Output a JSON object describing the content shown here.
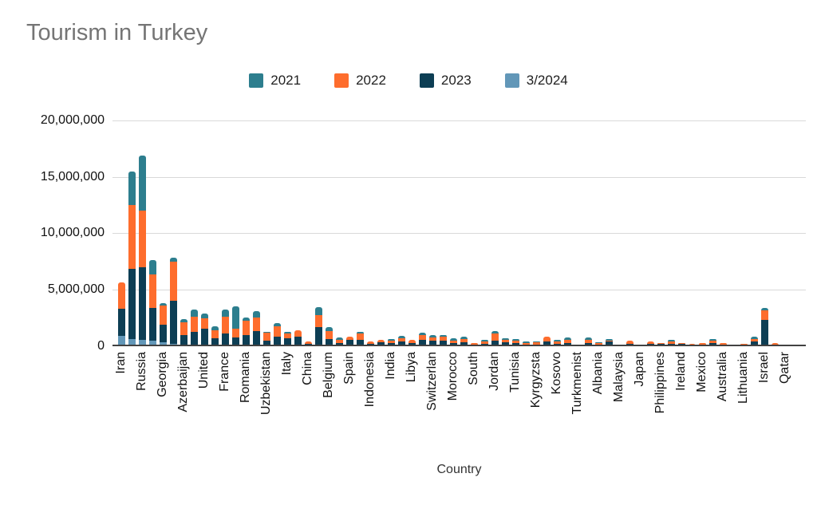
{
  "title": "Tourism in Turkey",
  "chart_data": {
    "type": "bar",
    "stacked": true,
    "title": "Tourism in Turkey",
    "xlabel": "Country",
    "ylabel": "",
    "ylim": [
      0,
      20000000
    ],
    "grid": true,
    "legend_position": "top",
    "yticks": [
      {
        "label": "0",
        "value": 0
      },
      {
        "label": "5,000,000",
        "value": 5000000
      },
      {
        "label": "10,000,000",
        "value": 10000000
      },
      {
        "label": "15,000,000",
        "value": 15000000
      },
      {
        "label": "20,000,000",
        "value": 20000000
      }
    ],
    "series": [
      {
        "name": "2021",
        "color": "#2d7e8e"
      },
      {
        "name": "2022",
        "color": "#fe6d2d"
      },
      {
        "name": "2023",
        "color": "#0d3e54"
      },
      {
        "name": "3/2024",
        "color": "#6297b8"
      }
    ],
    "stack_order_bottom_to_top": [
      "3/2024",
      "2023",
      "2022",
      "2021"
    ],
    "axis_note": "only every other bar carries a visible country label; empty label = unlabeled bar",
    "bars": [
      {
        "label": "Iran",
        "values": [
          890000,
          2430000,
          2350000,
          0
        ]
      },
      {
        "label": "",
        "values": [
          640000,
          6220000,
          5660000,
          2970000
        ]
      },
      {
        "label": "Russia",
        "values": [
          550000,
          6450000,
          5000000,
          4900000
        ]
      },
      {
        "label": "",
        "values": [
          470000,
          2910000,
          2950000,
          1300000
        ]
      },
      {
        "label": "Georgia",
        "values": [
          350000,
          1540000,
          1700000,
          240000
        ]
      },
      {
        "label": "",
        "values": [
          240000,
          3820000,
          3450000,
          330000
        ]
      },
      {
        "label": "Azerbaijan",
        "values": [
          0,
          990000,
          1130000,
          280000
        ]
      },
      {
        "label": "",
        "values": [
          0,
          1300000,
          1350000,
          610000
        ]
      },
      {
        "label": "United",
        "values": [
          0,
          1540000,
          940000,
          400000
        ]
      },
      {
        "label": "",
        "values": [
          0,
          710000,
          710000,
          350000
        ]
      },
      {
        "label": "France",
        "values": [
          0,
          1130000,
          1470000,
          660000
        ]
      },
      {
        "label": "",
        "values": [
          0,
          800000,
          800000,
          2000000
        ]
      },
      {
        "label": "Romania",
        "values": [
          0,
          970000,
          1250000,
          310000
        ]
      },
      {
        "label": "",
        "values": [
          0,
          1350000,
          1230000,
          590000
        ]
      },
      {
        "label": "Uzbekistan",
        "values": [
          0,
          520000,
          710000,
          100000
        ]
      },
      {
        "label": "",
        "values": [
          0,
          870000,
          900000,
          280000
        ]
      },
      {
        "label": "Italy",
        "values": [
          0,
          710000,
          400000,
          170000
        ]
      },
      {
        "label": "",
        "values": [
          0,
          870000,
          590000,
          0
        ]
      },
      {
        "label": "China",
        "values": [
          0,
          210000,
          240000,
          0
        ]
      },
      {
        "label": "",
        "values": [
          0,
          1700000,
          1060000,
          710000
        ]
      },
      {
        "label": "Belgium",
        "values": [
          0,
          640000,
          710000,
          350000
        ]
      },
      {
        "label": "",
        "values": [
          0,
          310000,
          280000,
          210000
        ]
      },
      {
        "label": "Spain",
        "values": [
          0,
          590000,
          280000,
          0
        ]
      },
      {
        "label": "",
        "values": [
          0,
          590000,
          540000,
          170000
        ]
      },
      {
        "label": "Indonesia",
        "values": [
          0,
          240000,
          240000,
          0
        ]
      },
      {
        "label": "",
        "values": [
          0,
          350000,
          210000,
          0
        ]
      },
      {
        "label": "India",
        "values": [
          0,
          280000,
          190000,
          170000
        ]
      },
      {
        "label": "",
        "values": [
          0,
          400000,
          310000,
          240000
        ]
      },
      {
        "label": "Libya",
        "values": [
          0,
          280000,
          280000,
          0
        ]
      },
      {
        "label": "",
        "values": [
          0,
          570000,
          430000,
          240000
        ]
      },
      {
        "label": "Switzerlan",
        "values": [
          0,
          470000,
          280000,
          190000
        ]
      },
      {
        "label": "",
        "values": [
          0,
          470000,
          350000,
          120000
        ]
      },
      {
        "label": "Morocco",
        "values": [
          0,
          280000,
          240000,
          190000
        ]
      },
      {
        "label": "",
        "values": [
          0,
          330000,
          280000,
          190000
        ]
      },
      {
        "label": "South",
        "values": [
          0,
          170000,
          160000,
          0
        ]
      },
      {
        "label": "",
        "values": [
          0,
          210000,
          210000,
          140000
        ]
      },
      {
        "label": "Jordan",
        "values": [
          0,
          470000,
          660000,
          240000
        ]
      },
      {
        "label": "",
        "values": [
          0,
          330000,
          240000,
          140000
        ]
      },
      {
        "label": "Tunisia",
        "values": [
          0,
          280000,
          240000,
          140000
        ]
      },
      {
        "label": "",
        "values": [
          0,
          140000,
          140000,
          140000
        ]
      },
      {
        "label": "Kyrgyzsta",
        "values": [
          0,
          170000,
          190000,
          70000
        ]
      },
      {
        "label": "",
        "values": [
          0,
          430000,
          400000,
          0
        ]
      },
      {
        "label": "Kosovo",
        "values": [
          0,
          240000,
          190000,
          170000
        ]
      },
      {
        "label": "",
        "values": [
          0,
          280000,
          280000,
          190000
        ]
      },
      {
        "label": "Turkmenist",
        "values": [
          0,
          90000,
          100000,
          0
        ]
      },
      {
        "label": "",
        "values": [
          0,
          280000,
          280000,
          190000
        ]
      },
      {
        "label": "Albania",
        "values": [
          0,
          170000,
          120000,
          90000
        ]
      },
      {
        "label": "",
        "values": [
          0,
          450000,
          70000,
          140000
        ]
      },
      {
        "label": "Malaysia",
        "values": [
          0,
          0,
          140000,
          0
        ]
      },
      {
        "label": "",
        "values": [
          0,
          240000,
          280000,
          0
        ]
      },
      {
        "label": "Japan",
        "values": [
          0,
          100000,
          0,
          90000
        ]
      },
      {
        "label": "",
        "values": [
          0,
          190000,
          240000,
          0
        ]
      },
      {
        "label": "Philippines",
        "values": [
          0,
          240000,
          20000,
          0
        ]
      },
      {
        "label": "",
        "values": [
          0,
          240000,
          190000,
          140000
        ]
      },
      {
        "label": "Ireland",
        "values": [
          0,
          210000,
          50000,
          0
        ]
      },
      {
        "label": "",
        "values": [
          0,
          0,
          190000,
          0
        ]
      },
      {
        "label": "Mexico",
        "values": [
          0,
          120000,
          140000,
          0
        ]
      },
      {
        "label": "",
        "values": [
          0,
          310000,
          240000,
          170000
        ]
      },
      {
        "label": "Australia",
        "values": [
          0,
          120000,
          120000,
          0
        ]
      },
      {
        "label": "",
        "values": [
          0,
          0,
          170000,
          0
        ]
      },
      {
        "label": "Lithuania",
        "values": [
          0,
          120000,
          20000,
          0
        ]
      },
      {
        "label": "",
        "values": [
          0,
          400000,
          240000,
          190000
        ]
      },
      {
        "label": "Israel",
        "values": [
          0,
          2360000,
          870000,
          190000
        ]
      },
      {
        "label": "",
        "values": [
          0,
          0,
          280000,
          0
        ]
      },
      {
        "label": "Qatar",
        "values": [
          0,
          0,
          170000,
          0
        ]
      }
    ]
  }
}
